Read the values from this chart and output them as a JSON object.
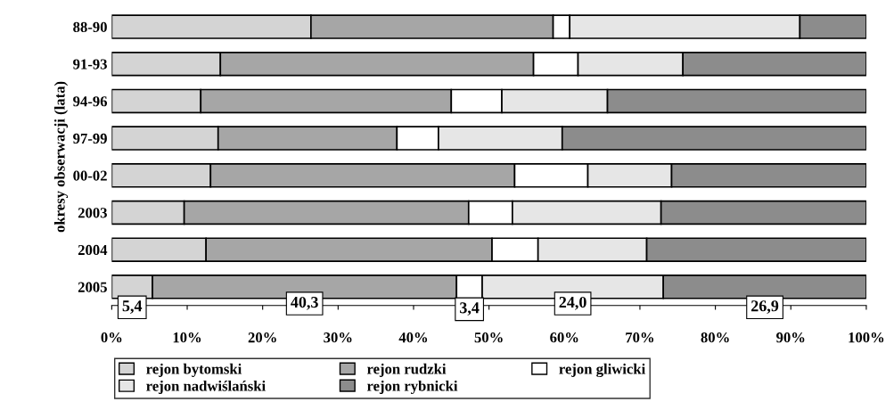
{
  "chart_data": {
    "type": "bar",
    "orientation": "horizontal",
    "stacked": true,
    "ylabel": "okresy obserwacji (lata)",
    "categories": [
      "88-90",
      "91-93",
      "94-96",
      "97-99",
      "00-02",
      "2003",
      "2004",
      "2005"
    ],
    "series": [
      {
        "name": "rejon bytomski",
        "color": "#d4d4d4",
        "values": [
          26.4,
          14.4,
          11.8,
          14.1,
          13.1,
          9.6,
          12.5,
          5.4
        ],
        "value_labels": [
          null,
          null,
          null,
          null,
          null,
          null,
          null,
          "5,4"
        ]
      },
      {
        "name": "rejon rudzki",
        "color": "#a6a6a6",
        "values": [
          32.1,
          41.5,
          33.2,
          23.7,
          40.3,
          37.7,
          37.9,
          40.3
        ],
        "value_labels": [
          null,
          null,
          null,
          null,
          null,
          null,
          null,
          "40,3"
        ]
      },
      {
        "name": "rejon gliwicki",
        "color": "#ffffff",
        "values": [
          2.2,
          5.9,
          6.7,
          5.5,
          9.7,
          5.8,
          6.1,
          3.4
        ],
        "value_labels": [
          null,
          null,
          null,
          null,
          null,
          null,
          null,
          "3,4"
        ]
      },
      {
        "name": "rejon nadwiślański",
        "color": "#e6e6e6",
        "values": [
          30.5,
          13.9,
          14.0,
          16.4,
          11.1,
          19.7,
          14.4,
          24.0
        ],
        "value_labels": [
          null,
          null,
          null,
          null,
          null,
          null,
          null,
          "24,0"
        ]
      },
      {
        "name": "rejon rybnicki",
        "color": "#8c8c8c",
        "values": [
          8.8,
          24.3,
          34.3,
          40.3,
          25.8,
          27.2,
          29.1,
          26.9
        ],
        "value_labels": [
          null,
          null,
          null,
          null,
          null,
          null,
          null,
          "26,9"
        ]
      }
    ],
    "xlim": [
      0,
      100
    ],
    "xticks": [
      {
        "value": 0,
        "label": "0%"
      },
      {
        "value": 10,
        "label": "10%"
      },
      {
        "value": 20,
        "label": "20%"
      },
      {
        "value": 30,
        "label": "30%"
      },
      {
        "value": 40,
        "label": "40%"
      },
      {
        "value": 50,
        "label": "50%"
      },
      {
        "value": 60,
        "label": "60%"
      },
      {
        "value": 70,
        "label": "70%"
      },
      {
        "value": 80,
        "label": "80%"
      },
      {
        "value": 90,
        "label": "90%"
      },
      {
        "value": 100,
        "label": "100%"
      }
    ],
    "grid": false,
    "legend": "bottom"
  }
}
